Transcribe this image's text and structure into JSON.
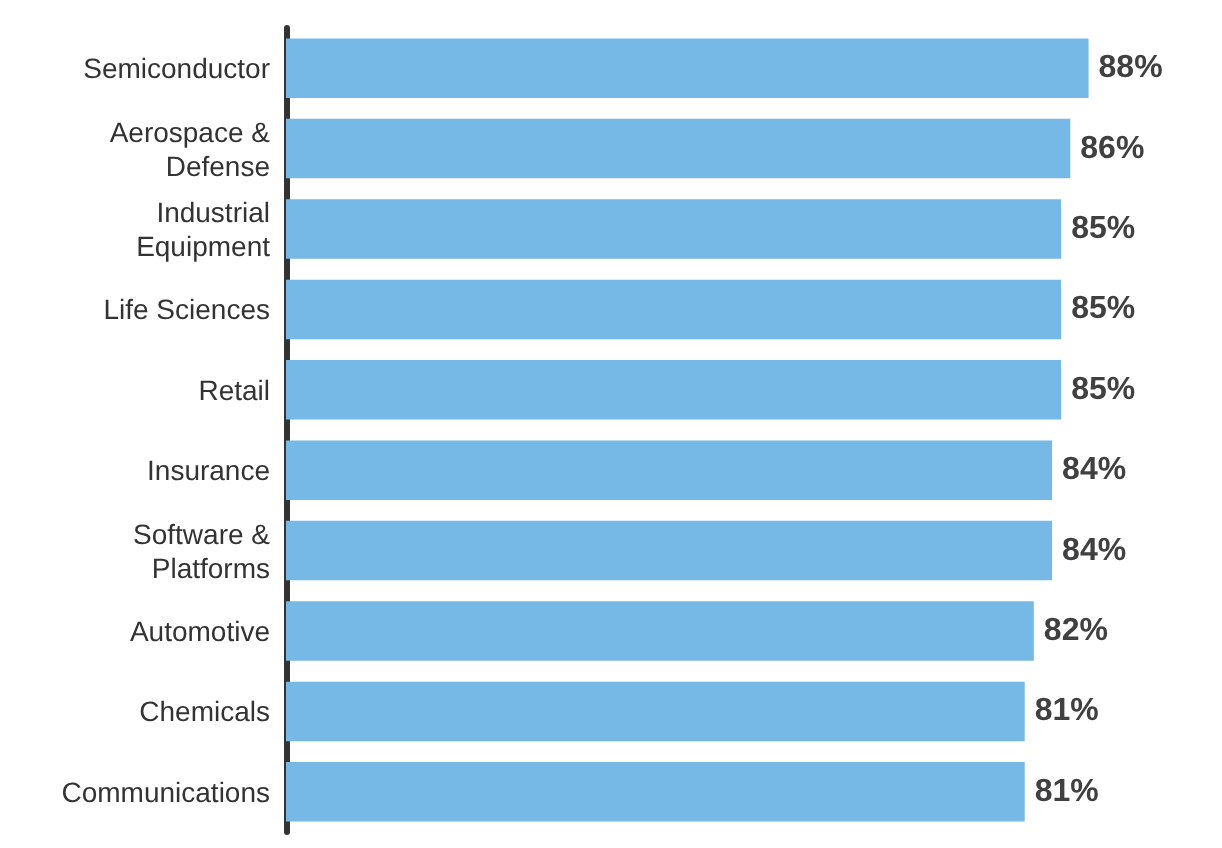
{
  "chart_data": {
    "type": "bar",
    "orientation": "horizontal",
    "categories": [
      "Semiconductor",
      "Aerospace & Defense",
      "Industrial Equipment",
      "Life Sciences",
      "Retail",
      "Insurance",
      "Software & Platforms",
      "Automotive",
      "Chemicals",
      "Communications"
    ],
    "values": [
      88,
      86,
      85,
      85,
      85,
      84,
      84,
      82,
      81,
      81
    ],
    "value_labels": [
      "88%",
      "86%",
      "85%",
      "85%",
      "85%",
      "84%",
      "84%",
      "82%",
      "81%",
      "81%"
    ],
    "color": "#77b9e6"
  }
}
